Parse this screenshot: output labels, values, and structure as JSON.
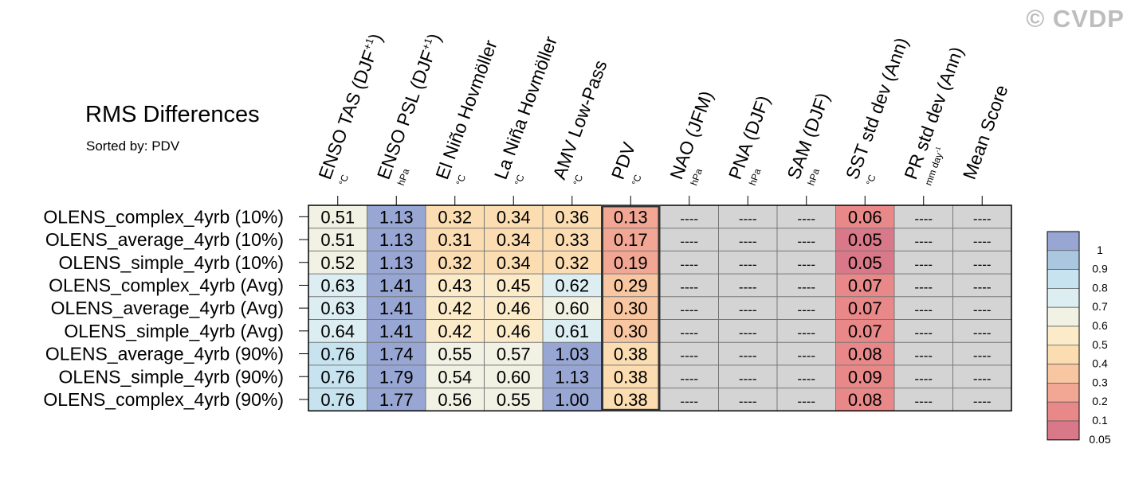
{
  "watermark": "© CVDP",
  "chart_data": {
    "type": "heatmap",
    "title": "RMS Differences",
    "subtitle": "Sorted by: PDV",
    "columns": [
      {
        "label": "ENSO TAS (DJF",
        "sup": "+1",
        "close": ")",
        "unit": "°C"
      },
      {
        "label": "ENSO PSL (DJF",
        "sup": "+1",
        "close": ")",
        "unit": "hPa"
      },
      {
        "label": "El Niño Hovmöller",
        "unit": "°C"
      },
      {
        "label": "La Niña Hovmöller",
        "unit": "°C"
      },
      {
        "label": "AMV Low-Pass",
        "unit": "°C"
      },
      {
        "label": "PDV",
        "unit": "°C"
      },
      {
        "label": "NAO (JFM)",
        "unit": "hPa"
      },
      {
        "label": "PNA (DJF)",
        "unit": "hPa"
      },
      {
        "label": "SAM (DJF)",
        "unit": "hPa"
      },
      {
        "label": "SST std dev (Ann)",
        "unit": "°C"
      },
      {
        "label": "PR std dev (Ann)",
        "unit": "mm day",
        "unit_sup": "-1"
      },
      {
        "label": "Mean Score",
        "unit": ""
      }
    ],
    "highlight_column": "PDV",
    "rows": [
      "OLENS_complex_4yrb (10%)",
      "OLENS_average_4yrb (10%)",
      "OLENS_simple_4yrb (10%)",
      "OLENS_complex_4yrb (Avg)",
      "OLENS_average_4yrb (Avg)",
      "OLENS_simple_4yrb (Avg)",
      "OLENS_average_4yrb (90%)",
      "OLENS_simple_4yrb (90%)",
      "OLENS_complex_4yrb (90%)"
    ],
    "values": [
      [
        "0.51",
        "1.13",
        "0.32",
        "0.34",
        "0.36",
        "0.13",
        "----",
        "----",
        "----",
        "0.06",
        "----",
        "----"
      ],
      [
        "0.51",
        "1.13",
        "0.31",
        "0.34",
        "0.33",
        "0.17",
        "----",
        "----",
        "----",
        "0.05",
        "----",
        "----"
      ],
      [
        "0.52",
        "1.13",
        "0.32",
        "0.34",
        "0.32",
        "0.19",
        "----",
        "----",
        "----",
        "0.05",
        "----",
        "----"
      ],
      [
        "0.63",
        "1.41",
        "0.43",
        "0.45",
        "0.62",
        "0.29",
        "----",
        "----",
        "----",
        "0.07",
        "----",
        "----"
      ],
      [
        "0.63",
        "1.41",
        "0.42",
        "0.46",
        "0.60",
        "0.30",
        "----",
        "----",
        "----",
        "0.07",
        "----",
        "----"
      ],
      [
        "0.64",
        "1.41",
        "0.42",
        "0.46",
        "0.61",
        "0.30",
        "----",
        "----",
        "----",
        "0.07",
        "----",
        "----"
      ],
      [
        "0.76",
        "1.74",
        "0.55",
        "0.57",
        "1.03",
        "0.38",
        "----",
        "----",
        "----",
        "0.08",
        "----",
        "----"
      ],
      [
        "0.76",
        "1.79",
        "0.54",
        "0.60",
        "1.13",
        "0.38",
        "----",
        "----",
        "----",
        "0.09",
        "----",
        "----"
      ],
      [
        "0.76",
        "1.77",
        "0.56",
        "0.55",
        "1.00",
        "0.38",
        "----",
        "----",
        "----",
        "0.08",
        "----",
        "----"
      ]
    ],
    "missing_color": "#d4d4d4",
    "colorbar": {
      "labels": [
        "1",
        "0.9",
        "0.8",
        "0.7",
        "0.6",
        "0.5",
        "0.4",
        "0.3",
        "0.2",
        "0.1",
        "0.05"
      ],
      "colors": [
        "#97a6d3",
        "#a9c8e0",
        "#c7e3ef",
        "#ddeef3",
        "#f1f1e4",
        "#fbebc9",
        "#fbddb1",
        "#f8c7a2",
        "#f1a793",
        "#e88889",
        "#d97888"
      ]
    }
  }
}
